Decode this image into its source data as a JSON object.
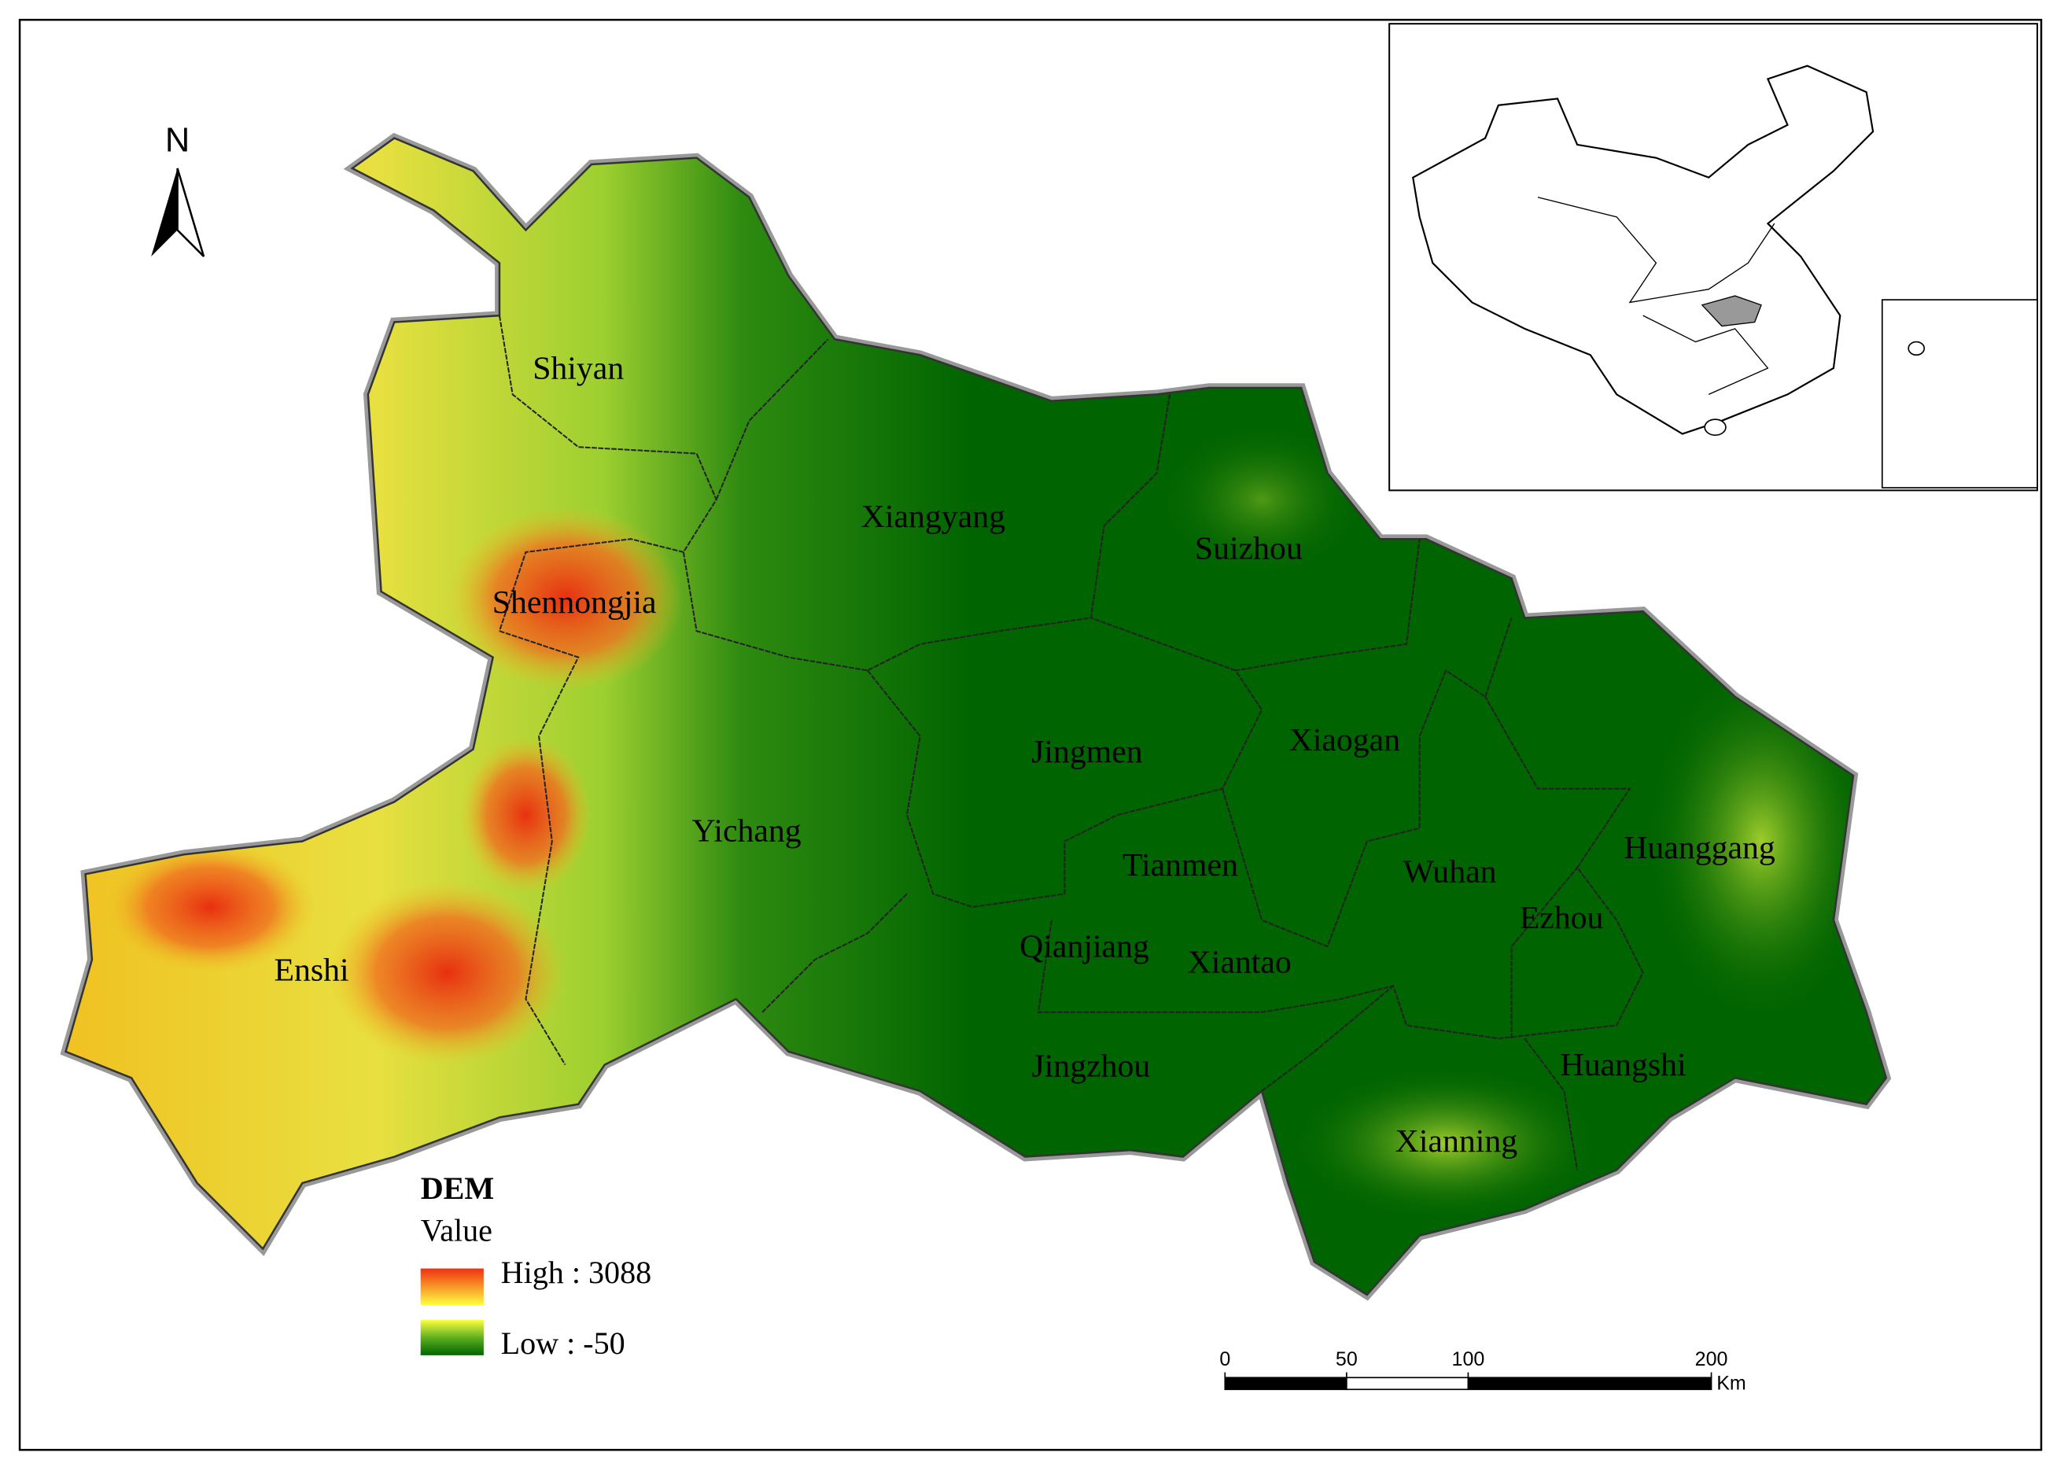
{
  "north_label": "N",
  "regions": [
    "Shiyan",
    "Xiangyang",
    "Suizhou",
    "Shennongjia",
    "Jingmen",
    "Xiaogan",
    "Yichang",
    "Tianmen",
    "Wuhan",
    "Huanggang",
    "Ezhou",
    "Enshi",
    "Qianjiang",
    "Xiantao",
    "Jingzhou",
    "Huangshi",
    "Xianning"
  ],
  "legend": {
    "title": "DEM",
    "subtitle": "Value",
    "high": "High : 3088",
    "low": "Low : -50"
  },
  "scale_bar": {
    "ticks": [
      0,
      50,
      100,
      200
    ],
    "unit": "Km"
  }
}
